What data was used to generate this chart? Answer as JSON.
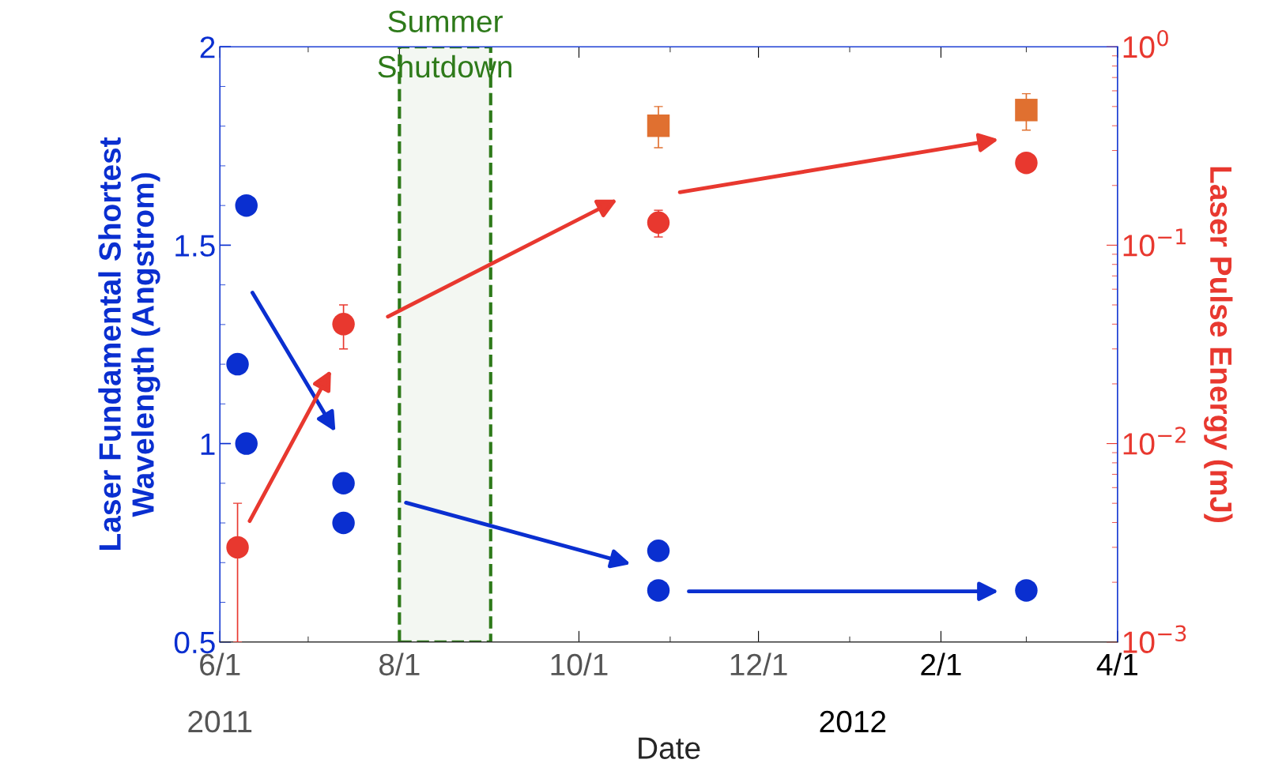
{
  "chart_data": {
    "type": "scatter",
    "xlabel": "Date",
    "ylabel": "Laser Fundamental Shortest\nWavelength (Angstrom)",
    "y2label": "Laser Pulse Energy (mJ)",
    "xlim": [
      "2011-06-01",
      "2012-04-01"
    ],
    "xticks": [
      {
        "value": "2011-06-01",
        "label": "6/1"
      },
      {
        "value": "2011-08-01",
        "label": "8/1"
      },
      {
        "value": "2011-10-01",
        "label": "10/1"
      },
      {
        "value": "2011-12-01",
        "label": "12/1"
      },
      {
        "value": "2012-02-01",
        "label": "2/1"
      },
      {
        "value": "2012-04-01",
        "label": "4/1"
      }
    ],
    "ylim": [
      0.5,
      2
    ],
    "yticks": [
      0.5,
      1,
      1.5,
      2
    ],
    "log": "y2",
    "y2lim": [
      0.001,
      1
    ],
    "y2ticks": [
      {
        "value": 0.001,
        "label": "10$^{−3}$"
      },
      {
        "value": 0.01,
        "label": "10$^{−2}$"
      },
      {
        "value": 0.1,
        "label": "10$^{−1}$"
      },
      {
        "value": 1,
        "label": "10$^{0}$"
      }
    ],
    "grid": false,
    "legend": false,
    "series": [
      {
        "color": "#0a2fd0",
        "marker": "circle",
        "x": [
          "2011-06-10",
          "2011-06-07",
          "2011-06-10",
          "2011-07-13",
          "2011-07-13",
          "2011-10-28",
          "2011-10-28",
          "2012-03-01"
        ],
        "values": [
          1.6,
          1.2,
          1.0,
          0.9,
          0.8,
          0.73,
          0.63,
          0.63
        ]
      },
      {
        "color": "#e8382f",
        "marker": "circle",
        "axis": "y2",
        "x": [
          "2011-06-07",
          "2011-07-13",
          "2011-10-28",
          "2012-03-01"
        ],
        "values": [
          0.003,
          0.04,
          0.13,
          0.26
        ],
        "errors": [
          [
            0.001,
            0.005
          ],
          [
            0.03,
            0.05
          ],
          [
            0.11,
            0.15
          ],
          null
        ]
      },
      {
        "color": "#e07030",
        "marker": "square",
        "axis": "y2",
        "x": [
          "2011-10-28",
          "2012-03-01"
        ],
        "values": [
          0.4,
          0.48
        ],
        "errors": [
          [
            0.31,
            0.5
          ],
          [
            0.38,
            0.58
          ]
        ]
      }
    ],
    "bands": [
      {
        "axis": "x",
        "from": "2011-08-01",
        "to": "2011-09-01",
        "label": "Summer\nShutdown",
        "color": "#2e7a1a"
      }
    ],
    "annotations": [
      "2011",
      "2012"
    ]
  }
}
